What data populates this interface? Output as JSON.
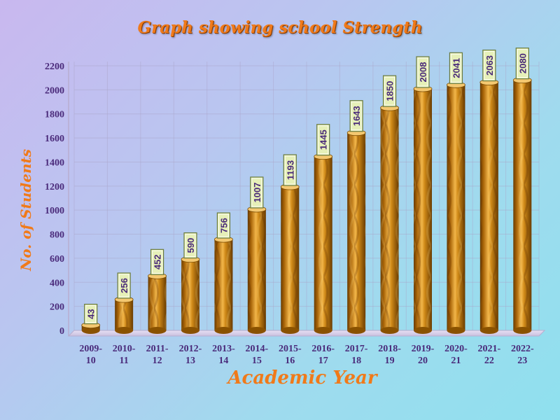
{
  "chart_data": {
    "type": "bar",
    "title": "Graph showing school Strength",
    "xlabel": "Academic Year",
    "ylabel": "No. of Students",
    "categories": [
      [
        "2009-",
        "10"
      ],
      [
        "2010-",
        "11"
      ],
      [
        "2011-",
        "12"
      ],
      [
        "2012-",
        "13"
      ],
      [
        "2013-",
        "14"
      ],
      [
        "2014-",
        "15"
      ],
      [
        "2015-",
        "16"
      ],
      [
        "2016-",
        "17"
      ],
      [
        "2017-",
        "18"
      ],
      [
        "2018-",
        "19"
      ],
      [
        "2019-",
        "20"
      ],
      [
        "2020-",
        "21"
      ],
      [
        "2021-",
        "22"
      ],
      [
        "2022-",
        "23"
      ]
    ],
    "values": [
      43,
      256,
      452,
      590,
      756,
      1007,
      1193,
      1445,
      1643,
      1850,
      2008,
      2041,
      2063,
      2080
    ],
    "ylim": [
      0,
      2200
    ],
    "yticks": [
      0,
      200,
      400,
      600,
      800,
      1000,
      1200,
      1400,
      1600,
      1800,
      2000,
      2200
    ],
    "grid": true,
    "legend": "none",
    "colors": {
      "bar_main": "#c07a0a",
      "bar_highlight": "#f2b64a",
      "bar_shadow": "#6a3c00",
      "label_box": "#e6f0b8",
      "label_border": "#6a7a40",
      "title": "#f07a1a",
      "ticks": "#4a2a7a"
    }
  }
}
